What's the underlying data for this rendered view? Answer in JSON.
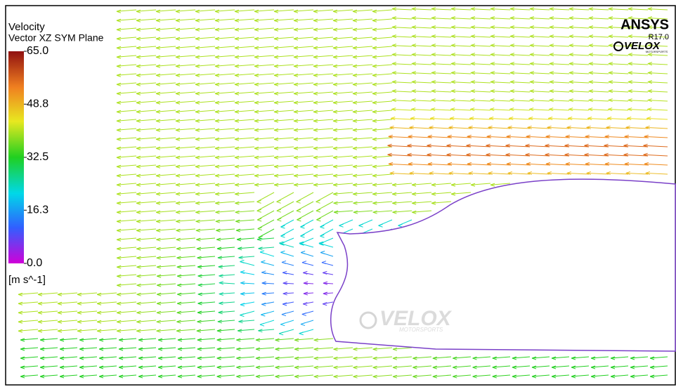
{
  "legend": {
    "title": "Velocity",
    "subtitle": "Vector XZ SYM Plane",
    "range": [
      0,
      65
    ],
    "ticks": [
      {
        "value": 65,
        "label": "65.0"
      },
      {
        "value": 48.8,
        "label": "48.8"
      },
      {
        "value": 32.5,
        "label": "32.5"
      },
      {
        "value": 16.3,
        "label": "16.3"
      },
      {
        "value": 0,
        "label": "0.0"
      }
    ],
    "unit": "[m s^-1]"
  },
  "branding": {
    "product": "ANSYS",
    "version": "R17.0",
    "logo": "VELOX",
    "logo_sub": "MOTORSPORTS"
  }
}
